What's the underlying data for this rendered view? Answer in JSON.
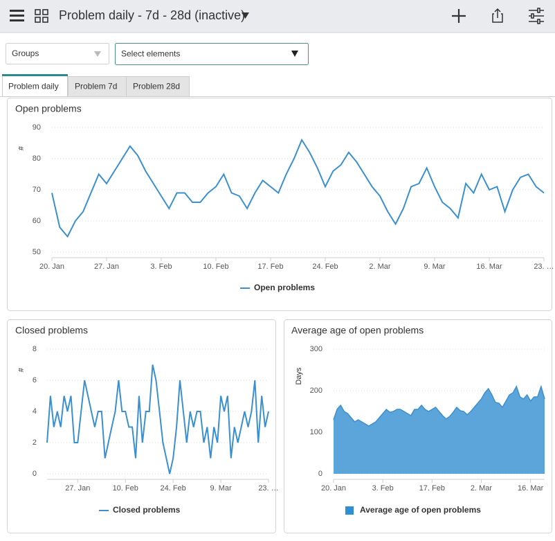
{
  "header": {
    "title": "Problem daily - 7d - 28d (inactive)"
  },
  "filters": {
    "groups": "Groups",
    "elements": "Select elements"
  },
  "tabs": [
    "Problem daily",
    "Problem 7d",
    "Problem 28d"
  ],
  "chart_data": [
    {
      "type": "line",
      "title": "Open problems",
      "y_label": "#",
      "categories": [
        "20. Jan",
        null,
        null,
        null,
        null,
        null,
        null,
        "27. Jan",
        null,
        null,
        null,
        null,
        null,
        null,
        "3. Feb",
        null,
        null,
        null,
        null,
        null,
        null,
        "10. Feb",
        null,
        null,
        null,
        null,
        null,
        null,
        "17. Feb",
        null,
        null,
        null,
        null,
        null,
        null,
        "24. Feb",
        null,
        null,
        null,
        null,
        null,
        null,
        "2. Mar",
        null,
        null,
        null,
        null,
        null,
        null,
        "9. Mar",
        null,
        null,
        null,
        null,
        null,
        null,
        "16. Mar",
        null,
        null,
        null,
        null,
        null,
        null,
        "23. …"
      ],
      "series": [
        {
          "name": "Open problems",
          "color": "#3a8fd0",
          "values": [
            69,
            58,
            55,
            60,
            63,
            69,
            75,
            72,
            76,
            80,
            84,
            81,
            76,
            72,
            68,
            64,
            69,
            69,
            66,
            66,
            69,
            71,
            75,
            69,
            68,
            64,
            69,
            73,
            71,
            69,
            75,
            80,
            86,
            82,
            77,
            71,
            76,
            78,
            82,
            79,
            75,
            71,
            68,
            63,
            59,
            64,
            71,
            72,
            77,
            71,
            66,
            64,
            61,
            72,
            69,
            75,
            70,
            71,
            63,
            70,
            74,
            75,
            71,
            69
          ]
        }
      ],
      "ylim": [
        50,
        90
      ],
      "yticks": [
        50,
        60,
        70,
        80,
        90
      ],
      "grid": true
    },
    {
      "type": "line",
      "title": "Closed problems",
      "y_label": "#",
      "categories": [
        null,
        null,
        null,
        null,
        null,
        null,
        null,
        null,
        null,
        "27. Jan",
        null,
        null,
        null,
        null,
        null,
        null,
        null,
        null,
        null,
        null,
        null,
        null,
        null,
        "10. Feb",
        null,
        null,
        null,
        null,
        null,
        null,
        null,
        null,
        null,
        null,
        null,
        null,
        null,
        "24. Feb",
        null,
        null,
        null,
        null,
        null,
        null,
        null,
        null,
        null,
        null,
        null,
        null,
        null,
        "9. Mar",
        null,
        null,
        null,
        null,
        null,
        null,
        null,
        null,
        null,
        null,
        null,
        null,
        null,
        "23. …"
      ],
      "series": [
        {
          "name": "Closed problems",
          "color": "#3a8fd0",
          "values": [
            2,
            5,
            3,
            4,
            3,
            5,
            4,
            5,
            2,
            2,
            4,
            6,
            5,
            4,
            3,
            4,
            4,
            1,
            2,
            3,
            4,
            6,
            4,
            4,
            3,
            3,
            1,
            5,
            2,
            4,
            4,
            7,
            6,
            4,
            2,
            1,
            0,
            1,
            3,
            6,
            4,
            2,
            4,
            3,
            4,
            4,
            2,
            3,
            1,
            3,
            2,
            5,
            4,
            5,
            1,
            3,
            2,
            3,
            4,
            3,
            4,
            6,
            2,
            5,
            3,
            4
          ]
        }
      ],
      "ylim": [
        0,
        8
      ],
      "yticks": [
        0,
        2,
        4,
        6,
        8
      ],
      "grid": true
    },
    {
      "type": "area",
      "title": "Average age of open problems",
      "y_label": "Days",
      "categories": [
        "20. Jan",
        null,
        null,
        null,
        null,
        null,
        null,
        null,
        null,
        null,
        null,
        null,
        null,
        null,
        "3. Feb",
        null,
        null,
        null,
        null,
        null,
        null,
        null,
        null,
        null,
        null,
        null,
        null,
        null,
        "17. Feb",
        null,
        null,
        null,
        null,
        null,
        null,
        null,
        null,
        null,
        null,
        null,
        null,
        null,
        "2. Mar",
        null,
        null,
        null,
        null,
        null,
        null,
        null,
        null,
        null,
        null,
        null,
        null,
        null,
        "16. Mar",
        null,
        null,
        null,
        null
      ],
      "series": [
        {
          "name": "Average age of open problems",
          "color": "#5ba5da",
          "values": [
            130,
            155,
            165,
            150,
            145,
            135,
            125,
            130,
            125,
            120,
            115,
            120,
            125,
            135,
            145,
            155,
            148,
            150,
            155,
            155,
            150,
            145,
            140,
            155,
            155,
            165,
            155,
            150,
            155,
            160,
            150,
            140,
            132,
            138,
            148,
            160,
            152,
            150,
            142,
            150,
            160,
            170,
            180,
            195,
            205,
            190,
            172,
            170,
            160,
            175,
            190,
            195,
            210,
            185,
            180,
            190,
            175,
            185,
            185,
            210,
            180
          ]
        }
      ],
      "ylim": [
        0,
        300
      ],
      "yticks": [
        0,
        100,
        200,
        300
      ],
      "grid": true
    }
  ]
}
